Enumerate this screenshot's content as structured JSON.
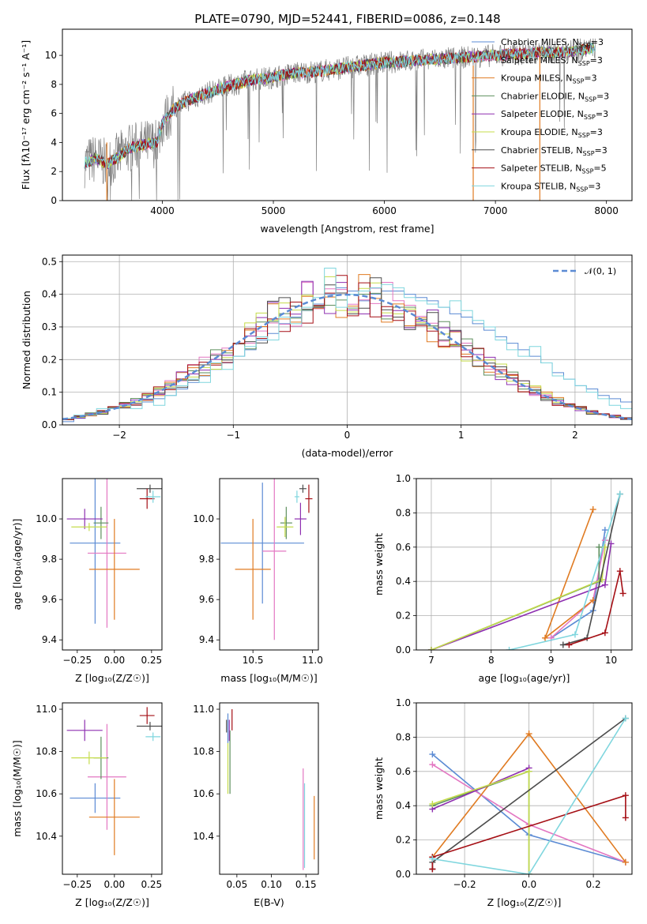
{
  "figure_title": "PLATE=0790, MJD=52441, FIBERID=0086, z=0.148",
  "colors": {
    "Chabrier MILES": "#5b8bd4",
    "Salpeter MILES": "#e377c2",
    "Kroupa MILES": "#e07b22",
    "Chabrier ELODIE": "#5e8f5e",
    "Salpeter ELODIE": "#8e2fb0",
    "Kroupa ELODIE": "#c5dc4b",
    "Chabrier STELIB": "#4c4c4c",
    "Salpeter STELIB": "#a50f15",
    "Kroupa STELIB": "#7fd6de",
    "data": "#7f7f7f",
    "gauss": "#5b8bd4"
  },
  "chart_data": [
    {
      "panel": "spectrum",
      "type": "line",
      "xlabel": "wavelength [Angstrom, rest frame]",
      "ylabel": "Flux [fλ10⁻¹⁷ erg cm⁻² s⁻¹ A⁻¹]",
      "xlim": [
        3100,
        8230
      ],
      "ylim": [
        0,
        11.8
      ],
      "xticks": [
        4000,
        5000,
        6000,
        7000,
        8000
      ],
      "yticks": [
        0,
        2,
        4,
        6,
        8,
        10
      ],
      "legend_position": "upper right",
      "legend": [
        "Chabrier MILES, N_SSP=3",
        "Salpeter MILES, N_SSP=3",
        "Kroupa MILES, N_SSP=3",
        "Chabrier ELODIE, N_SSP=3",
        "Salpeter ELODIE, N_SSP=3",
        "Kroupa ELODIE, N_SSP=3",
        "Chabrier STELIB, N_SSP=3",
        "Salpeter STELIB, N_SSP=5",
        "Kroupa STELIB, N_SSP=3"
      ],
      "model_envelope": [
        [
          3300,
          2.6
        ],
        [
          3400,
          2.9
        ],
        [
          3500,
          2.5
        ],
        [
          3600,
          3.0
        ],
        [
          3700,
          3.6
        ],
        [
          3800,
          3.8
        ],
        [
          3950,
          4.0
        ],
        [
          4000,
          5.3
        ],
        [
          4100,
          6.3
        ],
        [
          4200,
          6.8
        ],
        [
          4400,
          7.4
        ],
        [
          4600,
          7.9
        ],
        [
          4800,
          8.3
        ],
        [
          5000,
          8.5
        ],
        [
          5200,
          8.8
        ],
        [
          5400,
          8.9
        ],
        [
          5600,
          9.1
        ],
        [
          5800,
          9.3
        ],
        [
          6000,
          9.5
        ],
        [
          6200,
          9.6
        ],
        [
          6400,
          9.7
        ],
        [
          6600,
          9.8
        ],
        [
          6800,
          9.9
        ],
        [
          7000,
          10.0
        ],
        [
          7200,
          10.1
        ],
        [
          7400,
          10.2
        ],
        [
          7600,
          10.2
        ],
        [
          7800,
          10.4
        ],
        [
          7900,
          10.5
        ]
      ]
    },
    {
      "panel": "residual_histogram",
      "type": "histogram",
      "xlabel": "(data-model)/error",
      "ylabel": "Normed distribution",
      "xlim": [
        -2.5,
        2.5
      ],
      "ylim": [
        0,
        0.52
      ],
      "xticks": [
        -2,
        -1,
        0,
        1,
        2
      ],
      "yticks": [
        0.0,
        0.1,
        0.2,
        0.3,
        0.4,
        0.5
      ],
      "grid": true,
      "legend": [
        "𝒩(0, 1)"
      ],
      "legend_position": "upper right",
      "bin_width": 0.1,
      "bin_start": -2.5,
      "series_values": {
        "Chabrier MILES": [
          0.01,
          0.02,
          0.03,
          0.04,
          0.05,
          0.06,
          0.06,
          0.07,
          0.08,
          0.09,
          0.11,
          0.13,
          0.15,
          0.17,
          0.19,
          0.21,
          0.23,
          0.26,
          0.28,
          0.31,
          0.33,
          0.35,
          0.37,
          0.4,
          0.42,
          0.41,
          0.38,
          0.4,
          0.41,
          0.41,
          0.4,
          0.39,
          0.38,
          0.36,
          0.34,
          0.33,
          0.31,
          0.29,
          0.27,
          0.25,
          0.23,
          0.21,
          0.19,
          0.16,
          0.14,
          0.12,
          0.11,
          0.09,
          0.08,
          0.07
        ],
        "Kroupa STELIB": [
          0.02,
          0.03,
          0.03,
          0.05,
          0.05,
          0.06,
          0.05,
          0.08,
          0.06,
          0.09,
          0.12,
          0.14,
          0.13,
          0.19,
          0.17,
          0.21,
          0.24,
          0.27,
          0.26,
          0.33,
          0.31,
          0.36,
          0.39,
          0.48,
          0.36,
          0.4,
          0.41,
          0.42,
          0.43,
          0.42,
          0.39,
          0.38,
          0.37,
          0.36,
          0.38,
          0.35,
          0.32,
          0.3,
          0.26,
          0.23,
          0.21,
          0.24,
          0.19,
          0.15,
          0.14,
          0.12,
          0.1,
          0.08,
          0.06,
          0.05
        ]
      }
    },
    {
      "panel": "age_vs_Z",
      "type": "scatter",
      "xlabel": "Z [log₁₀(Z/Z☉)]",
      "ylabel": "age  [log₁₀(age/yr)]",
      "xlim": [
        -0.35,
        0.32
      ],
      "ylim": [
        9.35,
        10.2
      ],
      "xticks": [
        -0.25,
        0.0,
        0.25
      ],
      "yticks": [
        9.4,
        9.6,
        9.8,
        10.0
      ],
      "points": [
        {
          "series": "Chabrier MILES",
          "x": -0.13,
          "xerr": 0.17,
          "y": 9.88,
          "yerr": 0.4
        },
        {
          "series": "Salpeter MILES",
          "x": -0.05,
          "xerr": 0.13,
          "y": 9.83,
          "yerr": 0.37
        },
        {
          "series": "Kroupa MILES",
          "x": 0.0,
          "xerr": 0.17,
          "y": 9.75,
          "yerr": 0.25
        },
        {
          "series": "Chabrier ELODIE",
          "x": -0.09,
          "xerr": 0.05,
          "y": 9.98,
          "yerr": 0.08
        },
        {
          "series": "Salpeter ELODIE",
          "x": -0.2,
          "xerr": 0.12,
          "y": 10.0,
          "yerr": 0.05
        },
        {
          "series": "Kroupa ELODIE",
          "x": -0.17,
          "xerr": 0.12,
          "y": 9.96,
          "yerr": 0.02
        },
        {
          "series": "Chabrier STELIB",
          "x": 0.24,
          "xerr": 0.09,
          "y": 10.15,
          "yerr": 0.02
        },
        {
          "series": "Salpeter STELIB",
          "x": 0.22,
          "xerr": 0.05,
          "y": 10.1,
          "yerr": 0.05
        },
        {
          "series": "Kroupa STELIB",
          "x": 0.26,
          "xerr": 0.05,
          "y": 10.11,
          "yerr": 0.03
        }
      ]
    },
    {
      "panel": "age_vs_mass",
      "type": "scatter",
      "xlabel": "mass [log₁₀(M/M☉)]",
      "ylabel": "",
      "xlim": [
        10.22,
        11.05
      ],
      "ylim": [
        9.35,
        10.2
      ],
      "xticks": [
        10.5,
        11.0
      ],
      "yticks": [
        9.4,
        9.6,
        9.8,
        10.0
      ],
      "points": [
        {
          "series": "Chabrier MILES",
          "x": 10.58,
          "xerr": 0.35,
          "y": 9.88,
          "yerr": 0.3
        },
        {
          "series": "Salpeter MILES",
          "x": 10.68,
          "xerr": 0.1,
          "y": 9.84,
          "yerr": 0.44
        },
        {
          "series": "Kroupa MILES",
          "x": 10.5,
          "xerr": 0.15,
          "y": 9.75,
          "yerr": 0.25
        },
        {
          "series": "Chabrier ELODIE",
          "x": 10.78,
          "xerr": 0.05,
          "y": 9.98,
          "yerr": 0.08
        },
        {
          "series": "Salpeter ELODIE",
          "x": 10.9,
          "xerr": 0.05,
          "y": 10.0,
          "yerr": 0.08
        },
        {
          "series": "Kroupa ELODIE",
          "x": 10.77,
          "xerr": 0.07,
          "y": 9.96,
          "yerr": 0.05
        },
        {
          "series": "Chabrier STELIB",
          "x": 10.92,
          "xerr": 0.03,
          "y": 10.15,
          "yerr": 0.02
        },
        {
          "series": "Salpeter STELIB",
          "x": 10.97,
          "xerr": 0.03,
          "y": 10.1,
          "yerr": 0.07
        },
        {
          "series": "Kroupa STELIB",
          "x": 10.87,
          "xerr": 0.02,
          "y": 10.11,
          "yerr": 0.03
        }
      ]
    },
    {
      "panel": "mass_weight_vs_age",
      "type": "line",
      "xlabel": "age  [log₁₀(age/yr)]",
      "ylabel": "mass weight",
      "xlim": [
        6.75,
        10.35
      ],
      "ylim": [
        0,
        1.0
      ],
      "xticks": [
        7,
        8,
        9,
        10
      ],
      "yticks": [
        0.0,
        0.2,
        0.4,
        0.6,
        0.8,
        1.0
      ],
      "grid": true,
      "series": [
        {
          "series": "Chabrier MILES",
          "points": [
            [
              9.0,
              0.07
            ],
            [
              9.7,
              0.23
            ],
            [
              9.9,
              0.7
            ]
          ]
        },
        {
          "series": "Salpeter MILES",
          "points": [
            [
              9.0,
              0.07
            ],
            [
              9.7,
              0.29
            ],
            [
              9.9,
              0.64
            ]
          ]
        },
        {
          "series": "Kroupa MILES",
          "points": [
            [
              9.7,
              0.82
            ],
            [
              8.9,
              0.07
            ],
            [
              9.7,
              0.29
            ]
          ]
        },
        {
          "series": "Chabrier ELODIE",
          "points": [
            [
              7.0,
              0.0
            ],
            [
              9.8,
              0.4
            ],
            [
              9.8,
              0.6
            ]
          ]
        },
        {
          "series": "Salpeter ELODIE",
          "points": [
            [
              7.0,
              0.0
            ],
            [
              9.9,
              0.38
            ],
            [
              10.0,
              0.62
            ]
          ]
        },
        {
          "series": "Kroupa ELODIE",
          "points": [
            [
              7.0,
              0.0
            ],
            [
              9.85,
              0.41
            ],
            [
              9.9,
              0.6
            ]
          ]
        },
        {
          "series": "Chabrier STELIB",
          "points": [
            [
              9.2,
              0.03
            ],
            [
              9.6,
              0.07
            ],
            [
              10.15,
              0.91
            ]
          ]
        },
        {
          "series": "Salpeter STELIB",
          "points": [
            [
              9.3,
              0.03
            ],
            [
              9.9,
              0.1
            ],
            [
              10.15,
              0.46
            ],
            [
              10.2,
              0.33
            ]
          ]
        },
        {
          "series": "Kroupa STELIB",
          "points": [
            [
              8.3,
              0.0
            ],
            [
              9.4,
              0.09
            ],
            [
              10.15,
              0.91
            ]
          ]
        }
      ]
    },
    {
      "panel": "mass_vs_Z",
      "type": "scatter",
      "xlabel": "Z [log₁₀(Z/Z☉)]",
      "ylabel": "mass [log₁₀(M/M☉)]",
      "xlim": [
        -0.35,
        0.32
      ],
      "ylim": [
        10.22,
        11.03
      ],
      "xticks": [
        -0.25,
        0.0,
        0.25
      ],
      "yticks": [
        10.4,
        10.6,
        10.8,
        11.0
      ],
      "points": [
        {
          "series": "Chabrier MILES",
          "x": -0.13,
          "xerr": 0.17,
          "y": 10.58,
          "yerr": 0.07
        },
        {
          "series": "Salpeter MILES",
          "x": -0.05,
          "xerr": 0.13,
          "y": 10.68,
          "yerr": 0.25
        },
        {
          "series": "Kroupa MILES",
          "x": 0.0,
          "xerr": 0.17,
          "y": 10.49,
          "yerr": 0.18
        },
        {
          "series": "Chabrier ELODIE",
          "x": -0.09,
          "xerr": 0.05,
          "y": 10.77,
          "yerr": 0.1
        },
        {
          "series": "Salpeter ELODIE",
          "x": -0.2,
          "xerr": 0.12,
          "y": 10.9,
          "yerr": 0.05
        },
        {
          "series": "Kroupa ELODIE",
          "x": -0.17,
          "xerr": 0.12,
          "y": 10.77,
          "yerr": 0.03
        },
        {
          "series": "Chabrier STELIB",
          "x": 0.24,
          "xerr": 0.09,
          "y": 10.92,
          "yerr": 0.02
        },
        {
          "series": "Salpeter STELIB",
          "x": 0.22,
          "xerr": 0.05,
          "y": 10.97,
          "yerr": 0.04
        },
        {
          "series": "Kroupa STELIB",
          "x": 0.26,
          "xerr": 0.05,
          "y": 10.87,
          "yerr": 0.02
        }
      ]
    },
    {
      "panel": "mass_vs_EBV",
      "type": "scatter",
      "xlabel": "E(B-V)",
      "ylabel": "",
      "xlim": [
        0.025,
        0.168
      ],
      "ylim": [
        10.22,
        11.03
      ],
      "xticks": [
        0.05,
        0.1,
        0.15
      ],
      "yticks": [
        10.4,
        10.6,
        10.8,
        11.0
      ],
      "points": [
        {
          "series": "Chabrier MILES",
          "x": 0.037,
          "y": 10.91,
          "yerr": 0.07
        },
        {
          "series": "Salpeter MILES",
          "x": 0.146,
          "y": 10.48,
          "yerr": 0.24
        },
        {
          "series": "Kroupa MILES",
          "x": 0.162,
          "y": 10.44,
          "yerr": 0.15
        },
        {
          "series": "Chabrier ELODIE",
          "x": 0.04,
          "y": 10.75,
          "yerr": 0.15
        },
        {
          "series": "Salpeter ELODIE",
          "x": 0.039,
          "y": 10.9,
          "yerr": 0.05
        },
        {
          "series": "Kroupa ELODIE",
          "x": 0.037,
          "y": 10.72,
          "yerr": 0.12
        },
        {
          "series": "Chabrier STELIB",
          "x": 0.035,
          "y": 10.92,
          "yerr": 0.03
        },
        {
          "series": "Salpeter STELIB",
          "x": 0.043,
          "y": 10.95,
          "yerr": 0.05
        },
        {
          "series": "Kroupa STELIB",
          "x": 0.148,
          "y": 10.45,
          "yerr": 0.2
        }
      ]
    },
    {
      "panel": "mass_weight_vs_Z",
      "type": "line",
      "xlabel": "Z [log₁₀(Z/Z☉)]",
      "ylabel": "mass weight",
      "xlim": [
        -0.35,
        0.32
      ],
      "ylim": [
        0,
        1.0
      ],
      "xticks": [
        -0.2,
        0.0,
        0.2
      ],
      "yticks": [
        0.0,
        0.2,
        0.4,
        0.6,
        0.8,
        1.0
      ],
      "grid": true,
      "series": [
        {
          "series": "Chabrier MILES",
          "points": [
            [
              -0.3,
              0.7
            ],
            [
              0.0,
              0.23
            ],
            [
              0.3,
              0.07
            ]
          ]
        },
        {
          "series": "Salpeter MILES",
          "points": [
            [
              -0.3,
              0.64
            ],
            [
              0.0,
              0.29
            ],
            [
              0.3,
              0.07
            ]
          ]
        },
        {
          "series": "Kroupa MILES",
          "points": [
            [
              -0.3,
              0.1
            ],
            [
              0.0,
              0.82
            ],
            [
              0.3,
              0.07
            ]
          ]
        },
        {
          "series": "Chabrier ELODIE",
          "points": [
            [
              -0.3,
              0.4
            ],
            [
              0.0,
              0.6
            ],
            [
              0.0,
              0.0
            ]
          ]
        },
        {
          "series": "Salpeter ELODIE",
          "points": [
            [
              -0.3,
              0.38
            ],
            [
              0.0,
              0.62
            ]
          ]
        },
        {
          "series": "Kroupa ELODIE",
          "points": [
            [
              -0.3,
              0.41
            ],
            [
              0.0,
              0.6
            ],
            [
              0.0,
              0.0
            ]
          ]
        },
        {
          "series": "Chabrier STELIB",
          "points": [
            [
              -0.3,
              0.03
            ],
            [
              -0.3,
              0.07
            ],
            [
              0.3,
              0.91
            ]
          ]
        },
        {
          "series": "Salpeter STELIB",
          "points": [
            [
              -0.3,
              0.03
            ],
            [
              -0.3,
              0.1
            ],
            [
              0.3,
              0.46
            ],
            [
              0.3,
              0.33
            ]
          ]
        },
        {
          "series": "Kroupa STELIB",
          "points": [
            [
              -0.3,
              0.09
            ],
            [
              0.0,
              0.0
            ],
            [
              0.3,
              0.91
            ]
          ]
        }
      ]
    }
  ]
}
